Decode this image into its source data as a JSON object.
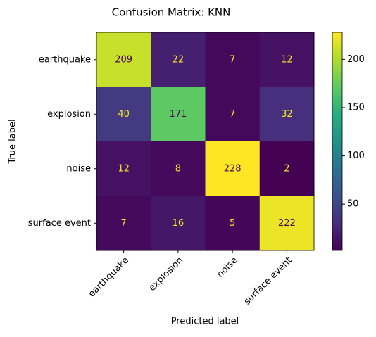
{
  "chart_data": {
    "type": "heatmap",
    "title": "Confusion Matrix: KNN",
    "xlabel": "Predicted label",
    "ylabel": "True label",
    "x_categories": [
      "earthquake",
      "explosion",
      "noise",
      "surface event"
    ],
    "y_categories": [
      "earthquake",
      "explosion",
      "noise",
      "surface event"
    ],
    "values": [
      [
        209,
        22,
        7,
        12
      ],
      [
        40,
        171,
        7,
        32
      ],
      [
        12,
        8,
        228,
        2
      ],
      [
        7,
        16,
        5,
        222
      ]
    ],
    "colormap": "viridis",
    "clim": [
      2,
      228
    ],
    "colorbar_ticks": [
      50,
      100,
      150,
      200
    ]
  }
}
